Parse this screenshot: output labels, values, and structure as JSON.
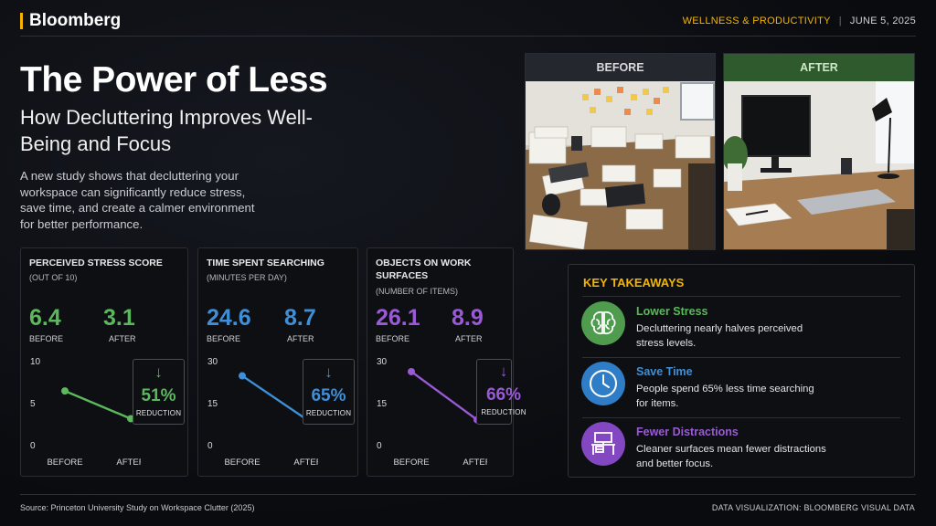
{
  "header": {
    "brand": "Bloomberg",
    "category": "WELLNESS & PRODUCTIVITY",
    "separator": "|",
    "date": "JUNE 5, 2025"
  },
  "headline": {
    "title": "The Power of Less",
    "subtitle": "How Decluttering Improves Well-Being and Focus",
    "intro": "A new study shows that decluttering your workspace can significantly reduce stress, save time, and create a calmer environment for better performance."
  },
  "photos": {
    "before_label": "BEFORE",
    "after_label": "AFTER"
  },
  "chart_data": [
    {
      "type": "line",
      "title": "PERCEIVED STRESS SCORE",
      "subtitle": "(OUT OF 10)",
      "categories": [
        "BEFORE",
        "AFTER"
      ],
      "values": [
        6.4,
        3.1
      ],
      "value_labels": [
        "6.4",
        "3.1"
      ],
      "value_captions": [
        "BEFORE",
        "AFTER"
      ],
      "ylim": [
        0,
        10
      ],
      "yticks": [
        0,
        5,
        10
      ],
      "ytick_labels": [
        "0",
        "5",
        "10"
      ],
      "reduction": "51%",
      "reduction_label": "REDUCTION",
      "arrow": "↓",
      "color": "#5cb85c"
    },
    {
      "type": "line",
      "title": "TIME SPENT SEARCHING",
      "subtitle": "(MINUTES PER DAY)",
      "categories": [
        "BEFORE",
        "AFTER"
      ],
      "values": [
        24.6,
        8.7
      ],
      "value_labels": [
        "24.6",
        "8.7"
      ],
      "value_captions": [
        "BEFORE",
        "AFTER"
      ],
      "ylim": [
        0,
        30
      ],
      "yticks": [
        0,
        15,
        30
      ],
      "ytick_labels": [
        "0",
        "15",
        "30"
      ],
      "reduction": "65%",
      "reduction_label": "REDUCTION",
      "arrow": "↓",
      "color": "#3f8fd8"
    },
    {
      "type": "line",
      "title": "OBJECTS ON WORK SURFACES",
      "subtitle": "(NUMBER OF ITEMS)",
      "categories": [
        "BEFORE",
        "AFTER"
      ],
      "values": [
        26.1,
        8.9
      ],
      "value_labels": [
        "26.1",
        "8.9"
      ],
      "value_captions": [
        "BEFORE",
        "AFTER"
      ],
      "ylim": [
        0,
        30
      ],
      "yticks": [
        0,
        15,
        30
      ],
      "ytick_labels": [
        "0",
        "15",
        "30"
      ],
      "reduction": "66%",
      "reduction_label": "REDUCTION",
      "arrow": "↓",
      "color": "#9a5ad6"
    }
  ],
  "takeaways": {
    "title": "KEY TAKEAWAYS",
    "items": [
      {
        "heading": "Lower Stress",
        "text": "Decluttering nearly halves perceived stress levels.",
        "icon": "brain-icon",
        "color": "#5cb85c"
      },
      {
        "heading": "Save Time",
        "text": "People spend 65% less time searching for items.",
        "icon": "clock-icon",
        "color": "#3f8fd8"
      },
      {
        "heading": "Fewer Distractions",
        "text": "Cleaner surfaces mean fewer distractions and better focus.",
        "icon": "desk-icon",
        "color": "#9a5ad6"
      }
    ]
  },
  "footer": {
    "source": "Source:  Princeton University Study on Workspace Clutter (2025)",
    "credit": "DATA VISUALIZATION: BLOOMBERG VISUAL DATA"
  }
}
